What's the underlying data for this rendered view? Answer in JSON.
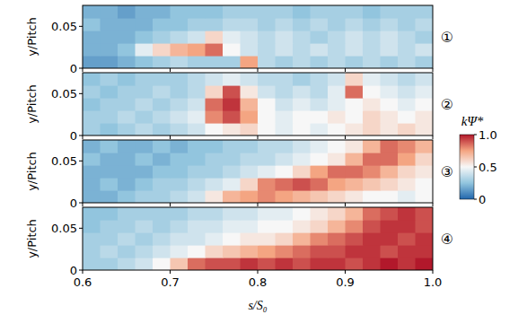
{
  "chart_data": [
    {
      "type": "heatmap",
      "title": "①",
      "ylabel": "y/Pitch",
      "tick_labels": "y",
      "xlim": [
        0.6,
        1.0
      ],
      "ylim": [
        0,
        0.075
      ],
      "xticks": [
        0.6,
        0.7,
        0.8,
        0.9,
        {
          "value": 1.0,
          "label": "1.0"
        }
      ],
      "yticks": [
        0,
        0.05
      ],
      "x": [
        0.61,
        0.63,
        0.65,
        0.67,
        0.69,
        0.71,
        0.73,
        0.75,
        0.77,
        0.79,
        0.81,
        0.83,
        0.85,
        0.87,
        0.89,
        0.91,
        0.93,
        0.95,
        0.97,
        0.99
      ],
      "y": [
        0.0075,
        0.0225,
        0.0375,
        0.0525,
        0.0675
      ],
      "values": [
        [
          0.15,
          0.15,
          0.2,
          0.25,
          0.3,
          0.35,
          0.3,
          0.3,
          0.3,
          0.75,
          0.35,
          0.3,
          0.35,
          0.3,
          0.35,
          0.3,
          0.35,
          0.3,
          0.35,
          0.3
        ],
        [
          0.2,
          0.2,
          0.25,
          0.45,
          0.6,
          0.7,
          0.75,
          0.85,
          0.5,
          0.4,
          0.35,
          0.4,
          0.35,
          0.4,
          0.35,
          0.4,
          0.35,
          0.4,
          0.35,
          0.4
        ],
        [
          0.2,
          0.2,
          0.2,
          0.25,
          0.3,
          0.35,
          0.4,
          0.6,
          0.45,
          0.4,
          0.35,
          0.4,
          0.35,
          0.3,
          0.35,
          0.4,
          0.35,
          0.4,
          0.35,
          0.3
        ],
        [
          0.25,
          0.2,
          0.2,
          0.2,
          0.25,
          0.25,
          0.3,
          0.3,
          0.35,
          0.35,
          0.3,
          0.35,
          0.3,
          0.35,
          0.3,
          0.35,
          0.3,
          0.35,
          0.3,
          0.35
        ],
        [
          0.2,
          0.2,
          0.15,
          0.2,
          0.2,
          0.25,
          0.25,
          0.25,
          0.3,
          0.3,
          0.3,
          0.3,
          0.25,
          0.3,
          0.3,
          0.3,
          0.25,
          0.3,
          0.3,
          0.3
        ]
      ]
    },
    {
      "type": "heatmap",
      "title": "②",
      "ylabel": "y/Pitch",
      "tick_labels": "y",
      "xlim": [
        0.6,
        1.0
      ],
      "ylim": [
        0,
        0.075
      ],
      "xticks": [
        0.6,
        0.7,
        0.8,
        0.9,
        {
          "value": 1.0,
          "label": "1.0"
        }
      ],
      "yticks": [
        0,
        0.05
      ],
      "x": [
        0.61,
        0.63,
        0.65,
        0.67,
        0.69,
        0.71,
        0.73,
        0.75,
        0.77,
        0.79,
        0.81,
        0.83,
        0.85,
        0.87,
        0.89,
        0.91,
        0.93,
        0.95,
        0.97,
        0.99
      ],
      "y": [
        0.0075,
        0.0225,
        0.0375,
        0.0525,
        0.0675
      ],
      "values": [
        [
          0.3,
          0.25,
          0.3,
          0.35,
          0.3,
          0.35,
          0.4,
          0.5,
          0.55,
          0.6,
          0.5,
          0.45,
          0.5,
          0.45,
          0.5,
          0.55,
          0.6,
          0.55,
          0.6,
          0.55
        ],
        [
          0.3,
          0.3,
          0.35,
          0.3,
          0.35,
          0.4,
          0.45,
          0.8,
          0.9,
          0.75,
          0.5,
          0.45,
          0.5,
          0.5,
          0.55,
          0.5,
          0.6,
          0.55,
          0.5,
          0.55
        ],
        [
          0.25,
          0.3,
          0.3,
          0.35,
          0.3,
          0.35,
          0.4,
          0.85,
          0.95,
          0.7,
          0.5,
          0.4,
          0.45,
          0.4,
          0.45,
          0.5,
          0.55,
          0.5,
          0.45,
          0.5
        ],
        [
          0.3,
          0.25,
          0.3,
          0.3,
          0.35,
          0.3,
          0.35,
          0.6,
          0.9,
          0.55,
          0.4,
          0.35,
          0.4,
          0.35,
          0.45,
          0.85,
          0.5,
          0.45,
          0.4,
          0.45
        ],
        [
          0.25,
          0.3,
          0.25,
          0.3,
          0.3,
          0.3,
          0.35,
          0.4,
          0.45,
          0.4,
          0.35,
          0.35,
          0.3,
          0.35,
          0.4,
          0.6,
          0.45,
          0.4,
          0.35,
          0.4
        ]
      ],
      "colorbar": {
        "label": "kΨ*",
        "range": [
          0,
          1
        ],
        "ticks": [
          0,
          0.5,
          {
            "value": 1,
            "label": "1.0"
          }
        ]
      }
    },
    {
      "type": "heatmap",
      "title": "③",
      "ylabel": "y/Pitch",
      "tick_labels": "y",
      "xlim": [
        0.6,
        1.0
      ],
      "ylim": [
        0,
        0.075
      ],
      "xticks": [
        0.6,
        0.7,
        0.8,
        0.9,
        {
          "value": 1.0,
          "label": "1.0"
        }
      ],
      "yticks": [
        0,
        0.05
      ],
      "x": [
        0.61,
        0.63,
        0.65,
        0.67,
        0.69,
        0.71,
        0.73,
        0.75,
        0.77,
        0.79,
        0.81,
        0.83,
        0.85,
        0.87,
        0.89,
        0.91,
        0.93,
        0.95,
        0.97,
        0.99
      ],
      "y": [
        0.0075,
        0.0225,
        0.0375,
        0.0525,
        0.0675
      ],
      "values": [
        [
          0.2,
          0.2,
          0.25,
          0.3,
          0.3,
          0.35,
          0.4,
          0.55,
          0.7,
          0.75,
          0.8,
          0.75,
          0.7,
          0.65,
          0.6,
          0.55,
          0.5,
          0.5,
          0.45,
          0.5
        ],
        [
          0.2,
          0.25,
          0.2,
          0.25,
          0.3,
          0.3,
          0.35,
          0.4,
          0.45,
          0.6,
          0.8,
          0.85,
          0.9,
          0.85,
          0.75,
          0.7,
          0.65,
          0.6,
          0.55,
          0.5
        ],
        [
          0.2,
          0.2,
          0.2,
          0.2,
          0.25,
          0.25,
          0.3,
          0.3,
          0.35,
          0.4,
          0.45,
          0.5,
          0.6,
          0.75,
          0.85,
          0.85,
          0.8,
          0.7,
          0.6,
          0.55
        ],
        [
          0.25,
          0.2,
          0.2,
          0.25,
          0.2,
          0.25,
          0.25,
          0.3,
          0.3,
          0.35,
          0.35,
          0.4,
          0.45,
          0.5,
          0.55,
          0.7,
          0.85,
          0.85,
          0.75,
          0.6
        ],
        [
          0.2,
          0.25,
          0.2,
          0.2,
          0.25,
          0.2,
          0.25,
          0.25,
          0.3,
          0.3,
          0.35,
          0.35,
          0.4,
          0.45,
          0.5,
          0.55,
          0.7,
          0.85,
          0.8,
          0.7
        ]
      ]
    },
    {
      "type": "heatmap",
      "title": "④",
      "ylabel": "y/Pitch",
      "xlabel": "s/S₀",
      "xlim": [
        0.6,
        1.0
      ],
      "ylim": [
        0,
        0.075
      ],
      "xticks": [
        0.6,
        0.7,
        0.8,
        0.9,
        {
          "value": 1.0,
          "label": "1.0"
        }
      ],
      "yticks": [
        0,
        0.05
      ],
      "x": [
        0.61,
        0.63,
        0.65,
        0.67,
        0.69,
        0.71,
        0.73,
        0.75,
        0.77,
        0.79,
        0.81,
        0.83,
        0.85,
        0.87,
        0.89,
        0.91,
        0.93,
        0.95,
        0.97,
        0.99
      ],
      "y": [
        0.0075,
        0.0225,
        0.0375,
        0.0525,
        0.0675
      ],
      "values": [
        [
          0.3,
          0.3,
          0.35,
          0.4,
          0.5,
          0.65,
          0.85,
          0.9,
          0.9,
          0.95,
          0.9,
          0.95,
          0.9,
          0.95,
          0.95,
          0.9,
          0.95,
          1.0,
          0.95,
          1.0
        ],
        [
          0.3,
          0.35,
          0.3,
          0.35,
          0.4,
          0.45,
          0.5,
          0.6,
          0.65,
          0.7,
          0.75,
          0.8,
          0.85,
          0.9,
          0.9,
          0.95,
          0.95,
          0.9,
          0.95,
          0.95
        ],
        [
          0.3,
          0.3,
          0.35,
          0.3,
          0.35,
          0.4,
          0.4,
          0.45,
          0.5,
          0.55,
          0.55,
          0.6,
          0.7,
          0.8,
          0.85,
          0.9,
          0.95,
          0.95,
          0.9,
          0.95
        ],
        [
          0.25,
          0.3,
          0.3,
          0.35,
          0.3,
          0.35,
          0.4,
          0.4,
          0.45,
          0.45,
          0.5,
          0.5,
          0.55,
          0.6,
          0.7,
          0.8,
          0.9,
          0.95,
          0.95,
          0.9
        ],
        [
          0.25,
          0.25,
          0.3,
          0.3,
          0.3,
          0.3,
          0.35,
          0.35,
          0.4,
          0.4,
          0.45,
          0.45,
          0.5,
          0.55,
          0.6,
          0.7,
          0.85,
          0.9,
          0.95,
          0.9
        ]
      ]
    }
  ]
}
